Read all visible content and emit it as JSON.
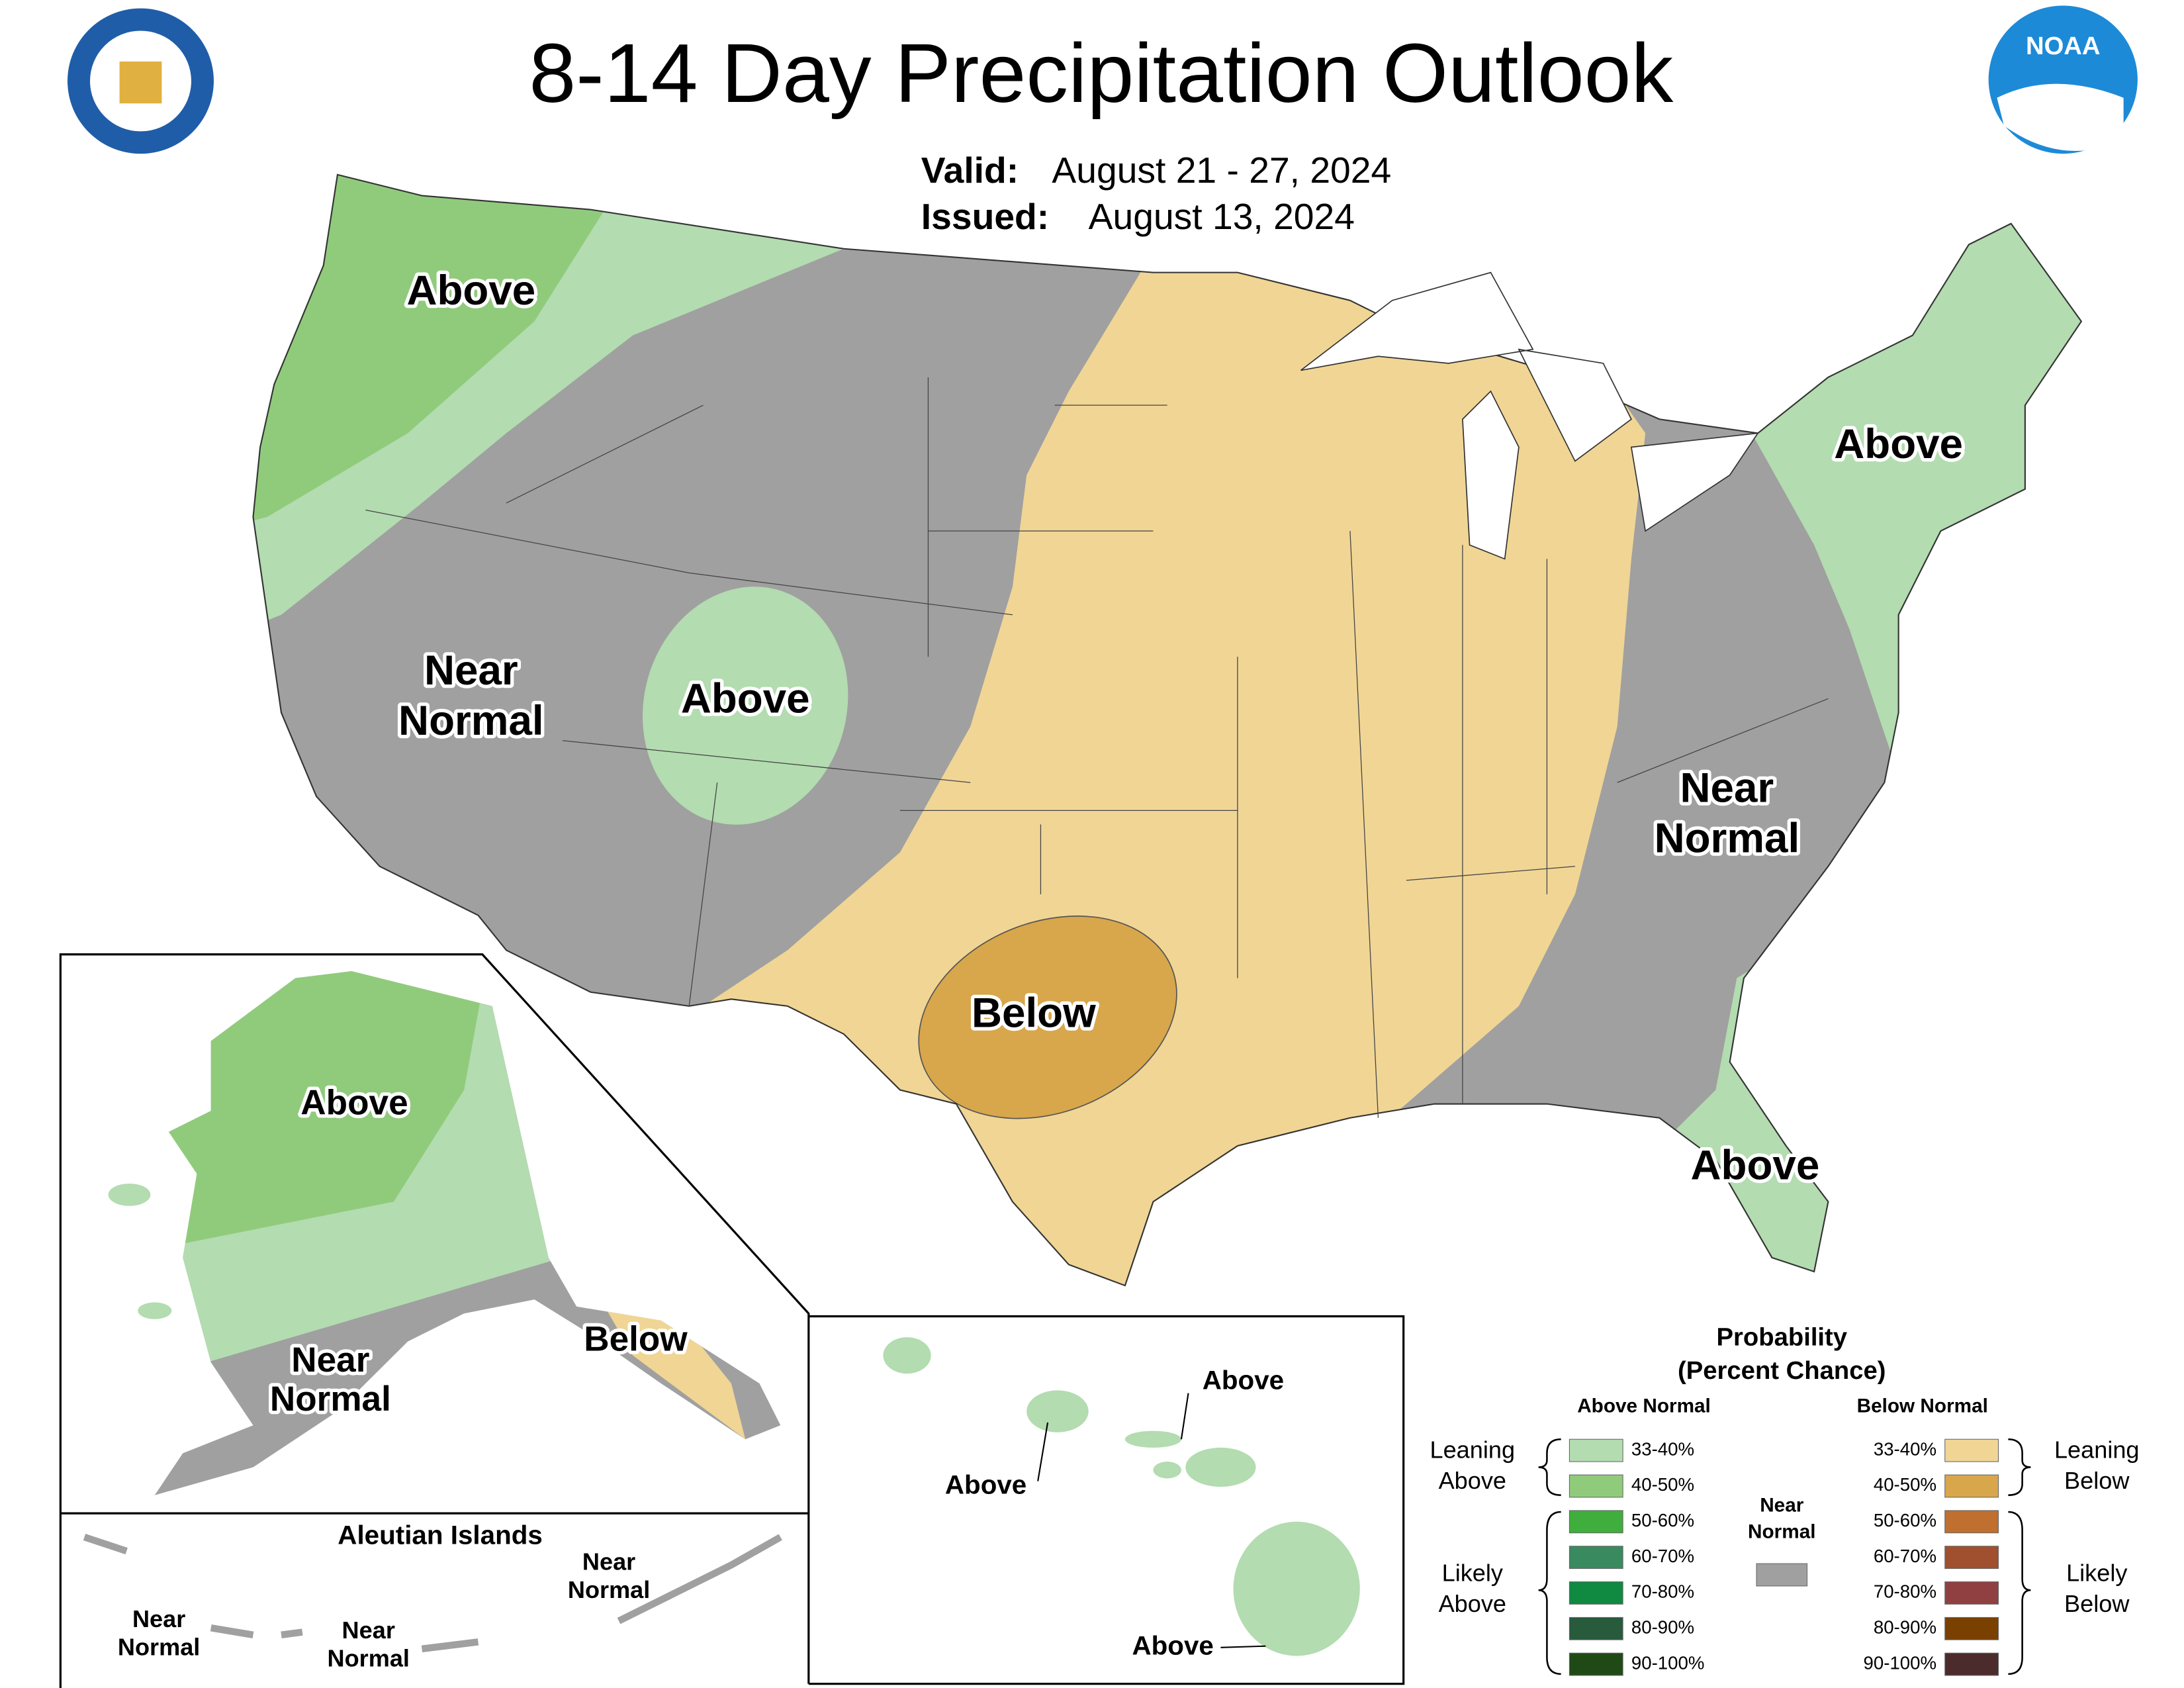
{
  "header": {
    "title": "8-14 Day Precipitation Outlook",
    "valid_label": "Valid:",
    "valid_dates": "August 21 - 27, 2024",
    "issued_label": "Issued:",
    "issued_date": "August 13, 2024"
  },
  "logo": {
    "noaa": "NOAA"
  },
  "conus_labels": [
    {
      "lines": [
        "Above"
      ]
    },
    {
      "lines": [
        "Near",
        "Normal"
      ]
    },
    {
      "lines": [
        "Above"
      ]
    },
    {
      "lines": [
        "Below"
      ]
    },
    {
      "lines": [
        "Above"
      ]
    },
    {
      "lines": [
        "Near",
        "Normal"
      ]
    },
    {
      "lines": [
        "Above"
      ]
    }
  ],
  "alaska_labels": [
    {
      "lines": [
        "Above"
      ]
    },
    {
      "lines": [
        "Near",
        "Normal"
      ]
    },
    {
      "lines": [
        "Below"
      ]
    }
  ],
  "aleutian": {
    "title": "Aleutian Islands",
    "labels": [
      {
        "lines": [
          "Near",
          "Normal"
        ]
      },
      {
        "lines": [
          "Near",
          "Normal"
        ]
      },
      {
        "lines": [
          "Near",
          "Normal"
        ]
      }
    ]
  },
  "hawaii_labels": [
    {
      "lines": [
        "Above"
      ]
    },
    {
      "lines": [
        "Above"
      ]
    },
    {
      "lines": [
        "Above"
      ]
    }
  ],
  "legend": {
    "title": [
      "Probability",
      "(Percent Chance)"
    ],
    "above_header": "Above Normal",
    "below_header": "Below Normal",
    "near_normal": {
      "lines": [
        "Near",
        "Normal"
      ],
      "color": "#a0a0a0"
    },
    "above": [
      {
        "range": "33-40%",
        "color": "#b3dcb0"
      },
      {
        "range": "40-50%",
        "color": "#90cb7c"
      },
      {
        "range": "50-60%",
        "color": "#40ae3c"
      },
      {
        "range": "60-70%",
        "color": "#3a8a60"
      },
      {
        "range": "70-80%",
        "color": "#0f8a40"
      },
      {
        "range": "80-90%",
        "color": "#285a3c"
      },
      {
        "range": "90-100%",
        "color": "#1f4a16"
      }
    ],
    "below": [
      {
        "range": "33-40%",
        "color": "#f0d595"
      },
      {
        "range": "40-50%",
        "color": "#d8a64b"
      },
      {
        "range": "50-60%",
        "color": "#bf6f30"
      },
      {
        "range": "60-70%",
        "color": "#a0502f"
      },
      {
        "range": "70-80%",
        "color": "#904040"
      },
      {
        "range": "80-90%",
        "color": "#7a4000"
      },
      {
        "range": "90-100%",
        "color": "#4b2b2b"
      }
    ],
    "groups": {
      "leaning_above": [
        "Leaning",
        "Above"
      ],
      "likely_above": [
        "Likely",
        "Above"
      ],
      "leaning_below": [
        "Leaning",
        "Below"
      ],
      "likely_below": [
        "Likely",
        "Below"
      ]
    }
  }
}
